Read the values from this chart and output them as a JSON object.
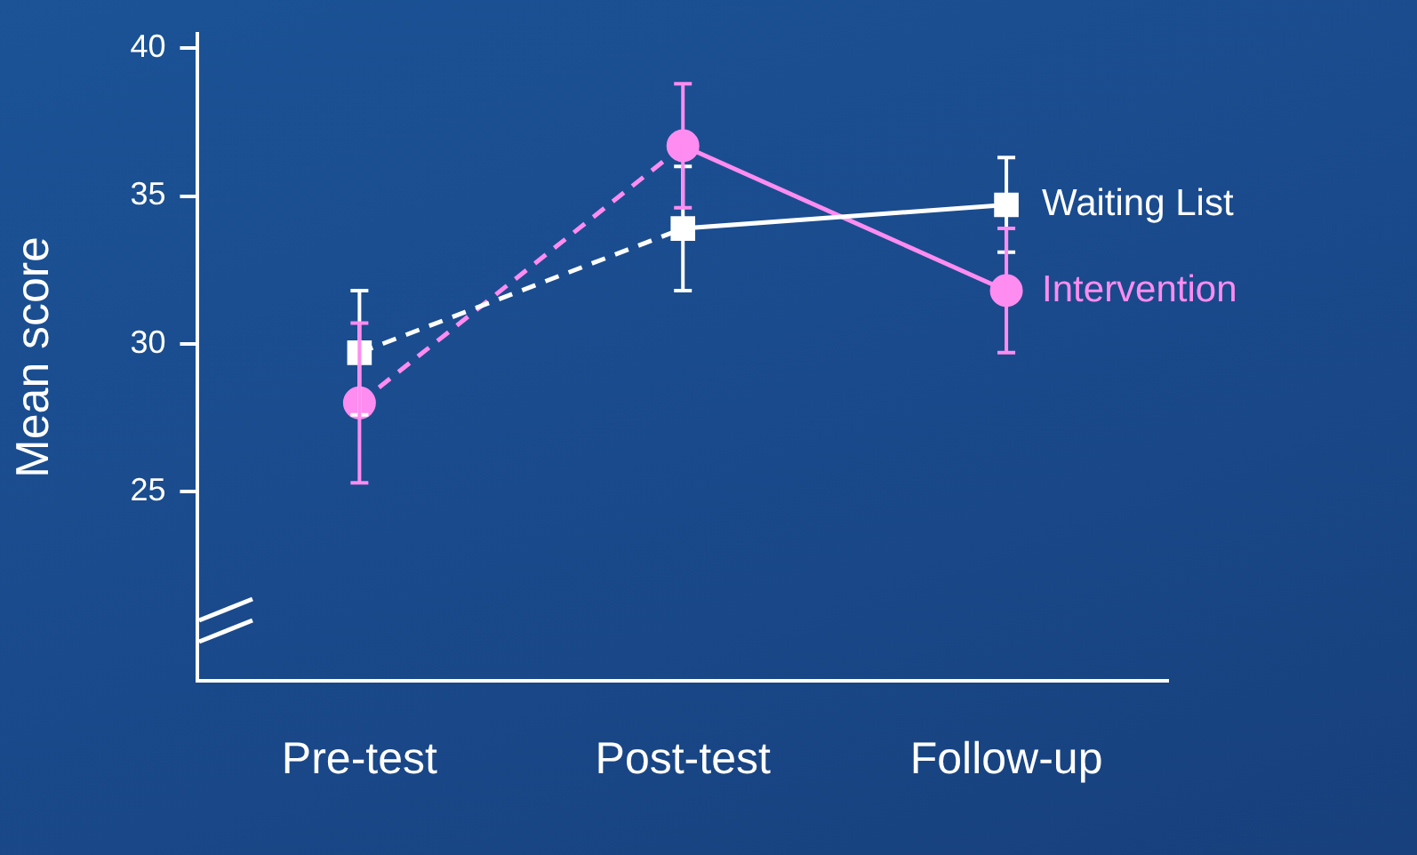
{
  "chart_data": {
    "type": "line",
    "ylabel": "Mean score",
    "categories": [
      "Pre-test",
      "Post-test",
      "Follow-up"
    ],
    "ylim": [
      18.6,
      40.5
    ],
    "yticks": [
      25,
      30,
      35,
      40
    ],
    "grid": false,
    "legend": false,
    "series": [
      {
        "name": "Waiting List",
        "color": "#ffffff",
        "marker": "square",
        "line_style": [
          "dashed",
          "solid"
        ],
        "values": [
          29.7,
          33.9,
          34.7
        ],
        "errors": [
          2.1,
          2.1,
          1.6
        ]
      },
      {
        "name": "Intervention",
        "color": "#ff8cf0",
        "marker": "circle",
        "line_style": [
          "dashed",
          "solid"
        ],
        "values": [
          28.0,
          36.7,
          31.8
        ],
        "errors": [
          2.7,
          2.1,
          2.1
        ]
      }
    ]
  }
}
